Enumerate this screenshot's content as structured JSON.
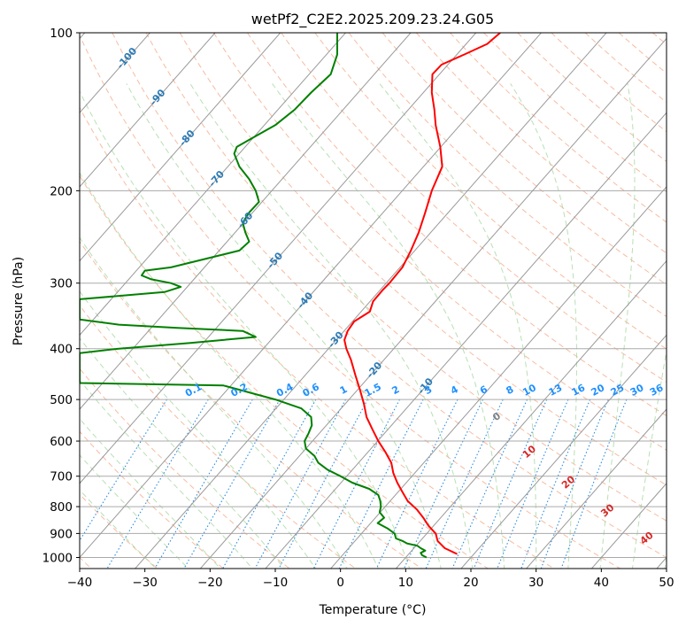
{
  "chart_data": {
    "type": "line",
    "subtype": "skew-t log-p",
    "title": "wetPf2_C2E2.2025.209.23.24.G05",
    "xlabel": "Temperature (°C)",
    "ylabel": "Pressure (hPa)",
    "xlim": [
      -40,
      50
    ],
    "ylim": [
      1050,
      100
    ],
    "y_scale": "log",
    "x_ticks": [
      "−40",
      "−30",
      "−20",
      "−10",
      "0",
      "10",
      "20",
      "30",
      "40",
      "50"
    ],
    "x_tick_values": [
      -40,
      -30,
      -20,
      -10,
      0,
      10,
      20,
      30,
      40,
      50
    ],
    "y_ticks": [
      "100",
      "200",
      "300",
      "400",
      "500",
      "600",
      "700",
      "800",
      "900",
      "1000"
    ],
    "y_tick_values": [
      100,
      200,
      300,
      400,
      500,
      600,
      700,
      800,
      900,
      1000
    ],
    "grid": true,
    "isotherm_labels": [
      "-100",
      "-90",
      "-80",
      "-70",
      "-60",
      "-50",
      "-40",
      "-30",
      "-20",
      "-10"
    ],
    "isotherm_label_values": [
      -100,
      -90,
      -80,
      -70,
      -60,
      -50,
      -40,
      -30,
      -20,
      -10
    ],
    "isotherm_label_pressures": [
      112,
      133,
      159,
      190,
      228,
      272,
      324,
      385,
      440,
      472
    ],
    "mixing_ratio_labels": [
      "0.1",
      "0.2",
      "0.4",
      "0.6",
      "1",
      "1.5",
      "2",
      "3",
      "4",
      "6",
      "8",
      "10",
      "13",
      "16",
      "20",
      "25",
      "30",
      "36"
    ],
    "mixing_ratio_label_positions": [
      -22.5,
      -15.5,
      -8.5,
      -4.5,
      0.5,
      5,
      8.5,
      13.5,
      17.5,
      22,
      26,
      29,
      33,
      36.5,
      39.5,
      42.5,
      45.5,
      48.5
    ],
    "moist_adiabat_labels": [
      "0",
      "10",
      "20",
      "30",
      "40"
    ],
    "moist_adiabat_label_points": [
      {
        "temperature": 24,
        "pressure": 540
      },
      {
        "temperature": 29,
        "pressure": 630
      },
      {
        "temperature": 35,
        "pressure": 720
      },
      {
        "temperature": 41,
        "pressure": 815
      },
      {
        "temperature": 47,
        "pressure": 920
      }
    ],
    "series": [
      {
        "role": "temperature",
        "color": "#ff0000",
        "pressure": [
          985,
          960,
          930,
          900,
          870,
          840,
          810,
          780,
          750,
          720,
          690,
          660,
          630,
          600,
          570,
          540,
          510,
          480,
          450,
          420,
          400,
          385,
          370,
          355,
          340,
          325,
          310,
          300,
          280,
          260,
          240,
          220,
          200,
          180,
          165,
          150,
          140,
          130,
          120,
          115,
          110,
          105,
          100
        ],
        "x_display": [
          17.9,
          16.0,
          14.9,
          14.6,
          13.5,
          12.7,
          11.7,
          10.3,
          9.5,
          8.7,
          8.1,
          7.8,
          6.9,
          5.8,
          4.9,
          4.0,
          3.6,
          3.0,
          2.3,
          1.6,
          0.9,
          0.6,
          1.1,
          2.1,
          4.5,
          5.0,
          6.4,
          7.5,
          9.5,
          10.8,
          12.0,
          13.0,
          14.0,
          15.6,
          15.3,
          14.6,
          14.4,
          14.0,
          14.1,
          15.5,
          19.0,
          22.5,
          24.5
        ]
      },
      {
        "role": "dewpoint",
        "color": "#008000",
        "pressure": [
          1000,
          990,
          980,
          970,
          960,
          950,
          940,
          930,
          920,
          900,
          880,
          860,
          840,
          820,
          800,
          780,
          760,
          740,
          720,
          700,
          680,
          660,
          640,
          620,
          600,
          580,
          560,
          540,
          520,
          500,
          470,
          465,
          440,
          420,
          410,
          408,
          400,
          390,
          380,
          370,
          365,
          360,
          352,
          350,
          325,
          322,
          312,
          305,
          300,
          295,
          290,
          284,
          280,
          260,
          250,
          240,
          230,
          220,
          210,
          200,
          190,
          180,
          170,
          165,
          160,
          150,
          140,
          130,
          120,
          110,
          100
        ],
        "x_display": [
          13.2,
          12.5,
          12.3,
          13.0,
          12.3,
          11.8,
          10.2,
          9.5,
          8.5,
          8.3,
          7.2,
          5.7,
          6.7,
          6.0,
          6.2,
          6.1,
          5.8,
          4.4,
          1.8,
          0.0,
          -2.0,
          -3.4,
          -4.0,
          -5.3,
          -5.5,
          -4.9,
          -4.4,
          -4.5,
          -6.0,
          -10.0,
          -18.0,
          -40.0,
          -40.0,
          -40.0,
          -40.0,
          -40.0,
          -34.0,
          -23.0,
          -13.0,
          -15.0,
          -25.0,
          -34.0,
          -40.0,
          -40.0,
          -40.0,
          -40.0,
          -27.0,
          -24.5,
          -26.0,
          -29.0,
          -30.5,
          -30.0,
          -26.0,
          -15.5,
          -14.0,
          -14.6,
          -15.0,
          -14.0,
          -12.5,
          -13.0,
          -14.0,
          -15.5,
          -16.3,
          -15.9,
          -14.0,
          -10.0,
          -7.0,
          -4.5,
          -1.5,
          -0.5,
          -0.5
        ]
      }
    ]
  }
}
